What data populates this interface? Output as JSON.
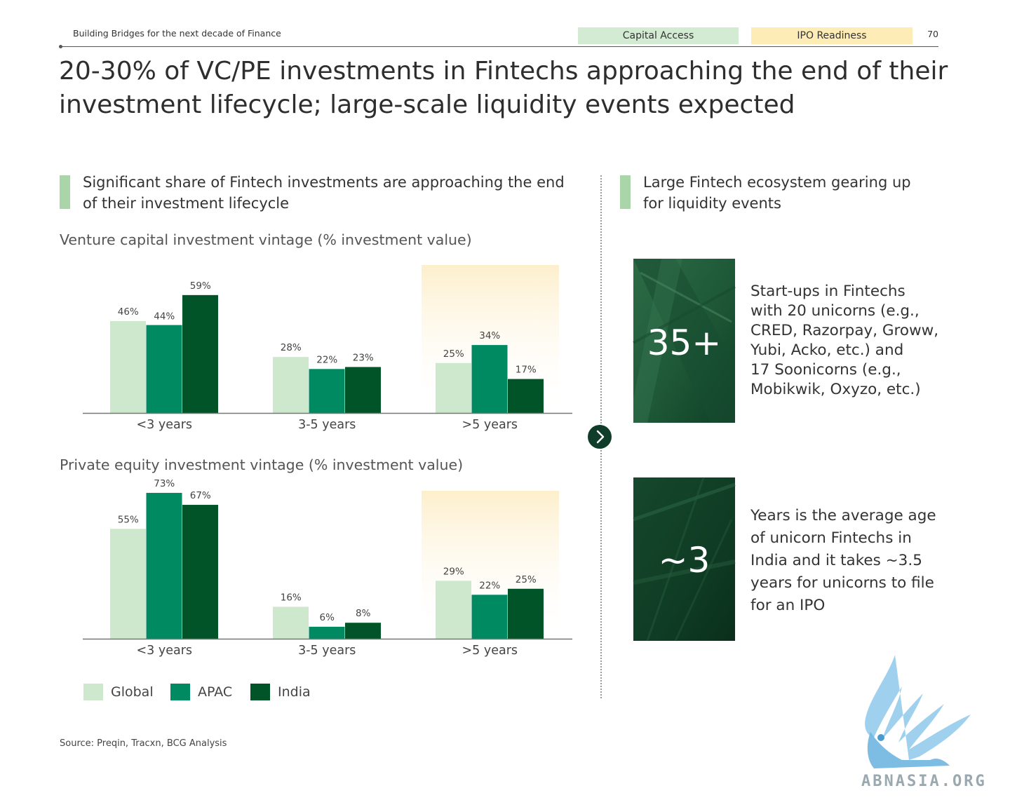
{
  "header": {
    "doc_title": "Building Bridges for the next decade of Finance",
    "tag_capital": "Capital Access",
    "tag_ipo": "IPO Readiness",
    "page_number": "70"
  },
  "title_line1": "20-30% of VC/PE investments in Fintechs approaching the end of their",
  "title_line2": "investment lifecycle; large-scale liquidity events expected",
  "left_section": {
    "heading_line1": "Significant share of Fintech investments are  approaching the end",
    "heading_line2": "of their investment lifecycle"
  },
  "right_section": {
    "heading_line1": "Large Fintech ecosystem gearing up",
    "heading_line2": "for liquidity events"
  },
  "colors": {
    "global": "#cde8cd",
    "apac": "#008a62",
    "india": "#005428",
    "highlight_top": "#fdefcc"
  },
  "chart_data": [
    {
      "type": "bar",
      "title": "Venture capital investment vintage (% investment value)",
      "categories": [
        "<3 years",
        "3-5 years",
        ">5 years"
      ],
      "series": [
        {
          "name": "Global",
          "values": [
            46,
            28,
            25
          ]
        },
        {
          "name": "APAC",
          "values": [
            44,
            22,
            34
          ]
        },
        {
          "name": "India",
          "values": [
            59,
            23,
            17
          ]
        }
      ],
      "value_labels": [
        [
          "46%",
          "44%",
          "59%"
        ],
        [
          "28%",
          "22%",
          "23%"
        ],
        [
          "25%",
          "34%",
          "17%"
        ]
      ],
      "highlight_category": ">5 years"
    },
    {
      "type": "bar",
      "title": "Private equity investment vintage (% investment value)",
      "categories": [
        "<3 years",
        "3-5 years",
        ">5 years"
      ],
      "series": [
        {
          "name": "Global",
          "values": [
            55,
            16,
            29
          ]
        },
        {
          "name": "APAC",
          "values": [
            73,
            6,
            22
          ]
        },
        {
          "name": "India",
          "values": [
            67,
            8,
            25
          ]
        }
      ],
      "value_labels": [
        [
          "55%",
          "73%",
          "67%"
        ],
        [
          "16%",
          "6%",
          "8%"
        ],
        [
          "29%",
          "22%",
          "25%"
        ]
      ],
      "highlight_category": ">5 years"
    }
  ],
  "legend": [
    "Global",
    "APAC",
    "India"
  ],
  "source": "Source: Preqin, Tracxn, BCG Analysis",
  "kpis": [
    {
      "number": "35+",
      "lines": [
        "Start-ups in Fintechs",
        "with 20 unicorns (e.g.,",
        "CRED, Razorpay, Groww,",
        "Yubi, Acko, etc.) and",
        "17 Soonicorns (e.g.,",
        "Mobikwik, Oxyzo, etc.)"
      ]
    },
    {
      "number": "~3",
      "lines": [
        "Years is the average age",
        "of unicorn Fintechs in",
        "India and it takes ~3.5",
        "years for unicorns to file",
        "for an IPO"
      ]
    }
  ],
  "watermark": "ABNASIA.ORG"
}
